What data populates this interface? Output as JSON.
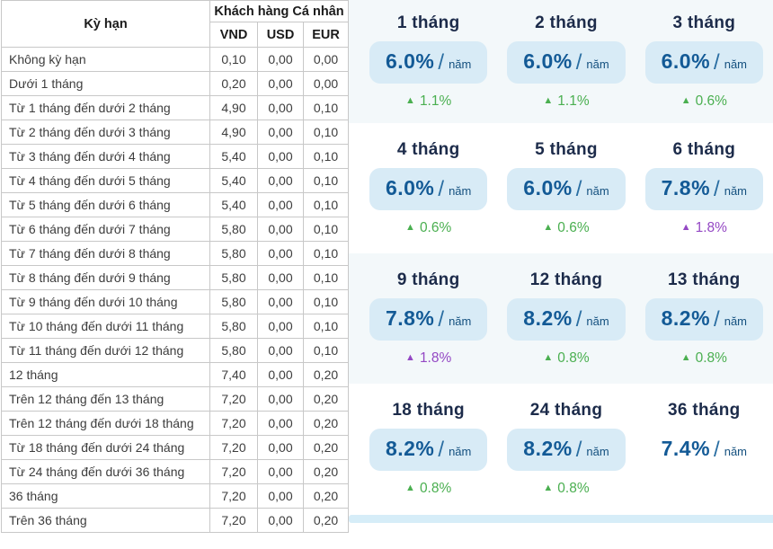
{
  "table": {
    "term_header": "Kỳ hạn",
    "group_header": "Khách hàng Cá nhân",
    "currency_headers": [
      "VND",
      "USD",
      "EUR"
    ],
    "rows": [
      {
        "term": "Không kỳ hạn",
        "vnd": "0,10",
        "usd": "0,00",
        "eur": "0,00"
      },
      {
        "term": "Dưới 1 tháng",
        "vnd": "0,20",
        "usd": "0,00",
        "eur": "0,00"
      },
      {
        "term": "Từ 1 tháng đến dưới 2 tháng",
        "vnd": "4,90",
        "usd": "0,00",
        "eur": "0,10"
      },
      {
        "term": "Từ 2 tháng đến dưới 3 tháng",
        "vnd": "4,90",
        "usd": "0,00",
        "eur": "0,10"
      },
      {
        "term": "Từ 3 tháng đến dưới 4 tháng",
        "vnd": "5,40",
        "usd": "0,00",
        "eur": "0,10"
      },
      {
        "term": "Từ 4 tháng đến dưới 5 tháng",
        "vnd": "5,40",
        "usd": "0,00",
        "eur": "0,10"
      },
      {
        "term": "Từ 5 tháng đến dưới 6 tháng",
        "vnd": "5,40",
        "usd": "0,00",
        "eur": "0,10"
      },
      {
        "term": "Từ 6 tháng đến dưới 7 tháng",
        "vnd": "5,80",
        "usd": "0,00",
        "eur": "0,10"
      },
      {
        "term": "Từ 7 tháng đến dưới 8 tháng",
        "vnd": "5,80",
        "usd": "0,00",
        "eur": "0,10"
      },
      {
        "term": "Từ 8 tháng đến dưới 9 tháng",
        "vnd": "5,80",
        "usd": "0,00",
        "eur": "0,10"
      },
      {
        "term": "Từ 9 tháng đến dưới 10 tháng",
        "vnd": "5,80",
        "usd": "0,00",
        "eur": "0,10"
      },
      {
        "term": "Từ 10 tháng đến dưới 11 tháng",
        "vnd": "5,80",
        "usd": "0,00",
        "eur": "0,10"
      },
      {
        "term": "Từ 11 tháng đến dưới 12 tháng",
        "vnd": "5,80",
        "usd": "0,00",
        "eur": "0,10"
      },
      {
        "term": "12 tháng",
        "vnd": "7,40",
        "usd": "0,00",
        "eur": "0,20"
      },
      {
        "term": "Trên 12 tháng đến 13 tháng",
        "vnd": "7,20",
        "usd": "0,00",
        "eur": "0,20"
      },
      {
        "term": "Trên 12 tháng đến dưới 18 tháng",
        "vnd": "7,20",
        "usd": "0,00",
        "eur": "0,20"
      },
      {
        "term": "Từ 18 tháng đến dưới 24 tháng",
        "vnd": "7,20",
        "usd": "0,00",
        "eur": "0,20"
      },
      {
        "term": "Từ 24 tháng đến dưới 36 tháng",
        "vnd": "7,20",
        "usd": "0,00",
        "eur": "0,20"
      },
      {
        "term": "36 tháng",
        "vnd": "7,20",
        "usd": "0,00",
        "eur": "0,20"
      },
      {
        "term": "Trên 36 tháng",
        "vnd": "7,20",
        "usd": "0,00",
        "eur": "0,20"
      }
    ]
  },
  "cards": {
    "unit": "năm",
    "up_arrow": "▲",
    "slash": "/",
    "rows": [
      [
        {
          "term": "1 tháng",
          "rate": "6.0%",
          "change": "1.1%",
          "trend": "green",
          "boxed": true
        },
        {
          "term": "2 tháng",
          "rate": "6.0%",
          "change": "1.1%",
          "trend": "green",
          "boxed": true
        },
        {
          "term": "3 tháng",
          "rate": "6.0%",
          "change": "0.6%",
          "trend": "green",
          "boxed": true
        }
      ],
      [
        {
          "term": "4 tháng",
          "rate": "6.0%",
          "change": "0.6%",
          "trend": "green",
          "boxed": true
        },
        {
          "term": "5 tháng",
          "rate": "6.0%",
          "change": "0.6%",
          "trend": "green",
          "boxed": true
        },
        {
          "term": "6 tháng",
          "rate": "7.8%",
          "change": "1.8%",
          "trend": "purple",
          "boxed": true
        }
      ],
      [
        {
          "term": "9 tháng",
          "rate": "7.8%",
          "change": "1.8%",
          "trend": "purple",
          "boxed": true
        },
        {
          "term": "12 tháng",
          "rate": "8.2%",
          "change": "0.8%",
          "trend": "green",
          "boxed": true
        },
        {
          "term": "13 tháng",
          "rate": "8.2%",
          "change": "0.8%",
          "trend": "green",
          "boxed": true
        }
      ],
      [
        {
          "term": "18 tháng",
          "rate": "8.2%",
          "change": "0.8%",
          "trend": "green",
          "boxed": true
        },
        {
          "term": "24 tháng",
          "rate": "8.2%",
          "change": "0.8%",
          "trend": "green",
          "boxed": true
        },
        {
          "term": "36 tháng",
          "rate": "7.4%",
          "change": "",
          "trend": "green",
          "boxed": false
        }
      ]
    ]
  },
  "colors": {
    "rate_text": "#135a96",
    "rate_box_bg": "#d8ebf6",
    "title_navy": "#1c2b4a",
    "change_green": "#4aaf50",
    "change_purple": "#9448c4",
    "row_tint": "#f3f8fa",
    "bottom_bar": "#d6edf8",
    "table_border": "#c8c8c8"
  }
}
